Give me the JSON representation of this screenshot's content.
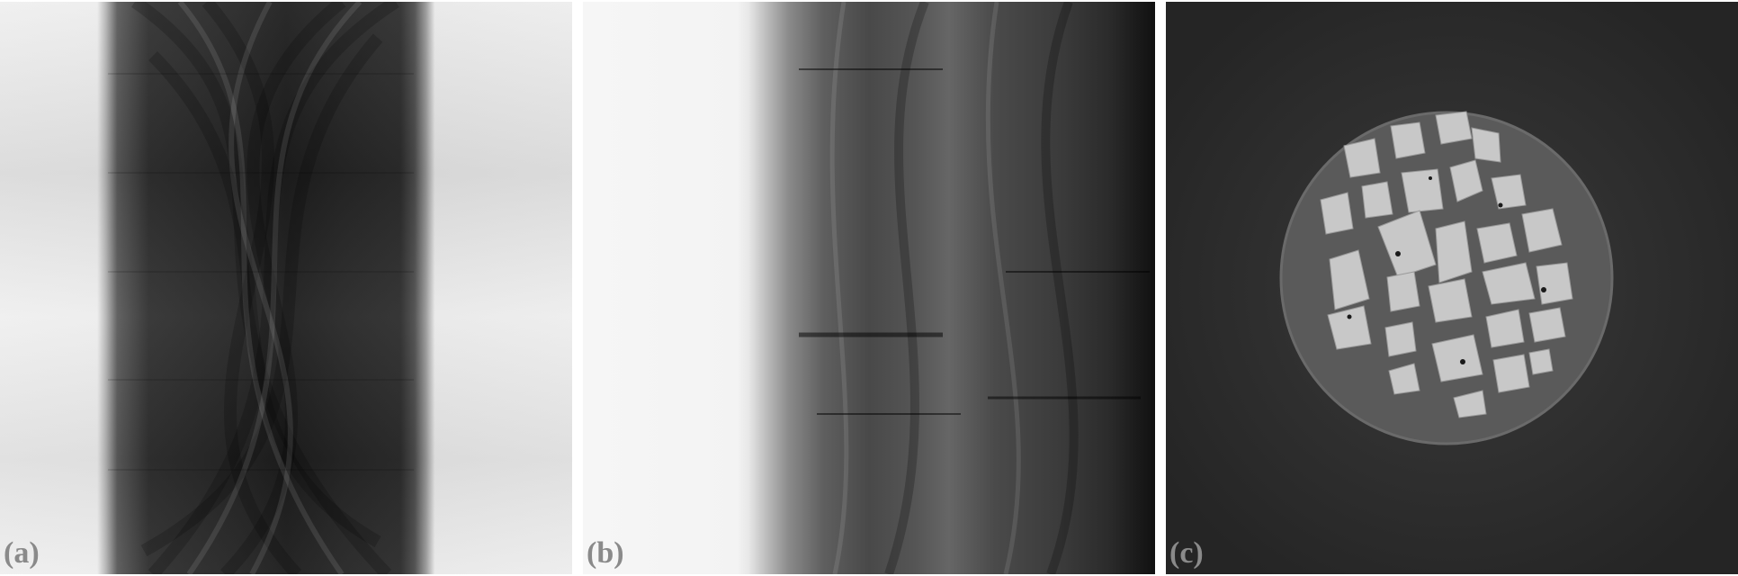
{
  "panels": [
    {
      "id": "a",
      "label": "(a)",
      "kind": "sinogram"
    },
    {
      "id": "b",
      "label": "(b)",
      "kind": "projection"
    },
    {
      "id": "c",
      "label": "(c)",
      "kind": "ct-slice"
    }
  ],
  "colors": {
    "background": "#ffffff",
    "label": "#8a8a8a",
    "slice_background": "#2d2d2d",
    "sample_matrix": "#5a5a5a",
    "grain": "#c8c8c8"
  }
}
